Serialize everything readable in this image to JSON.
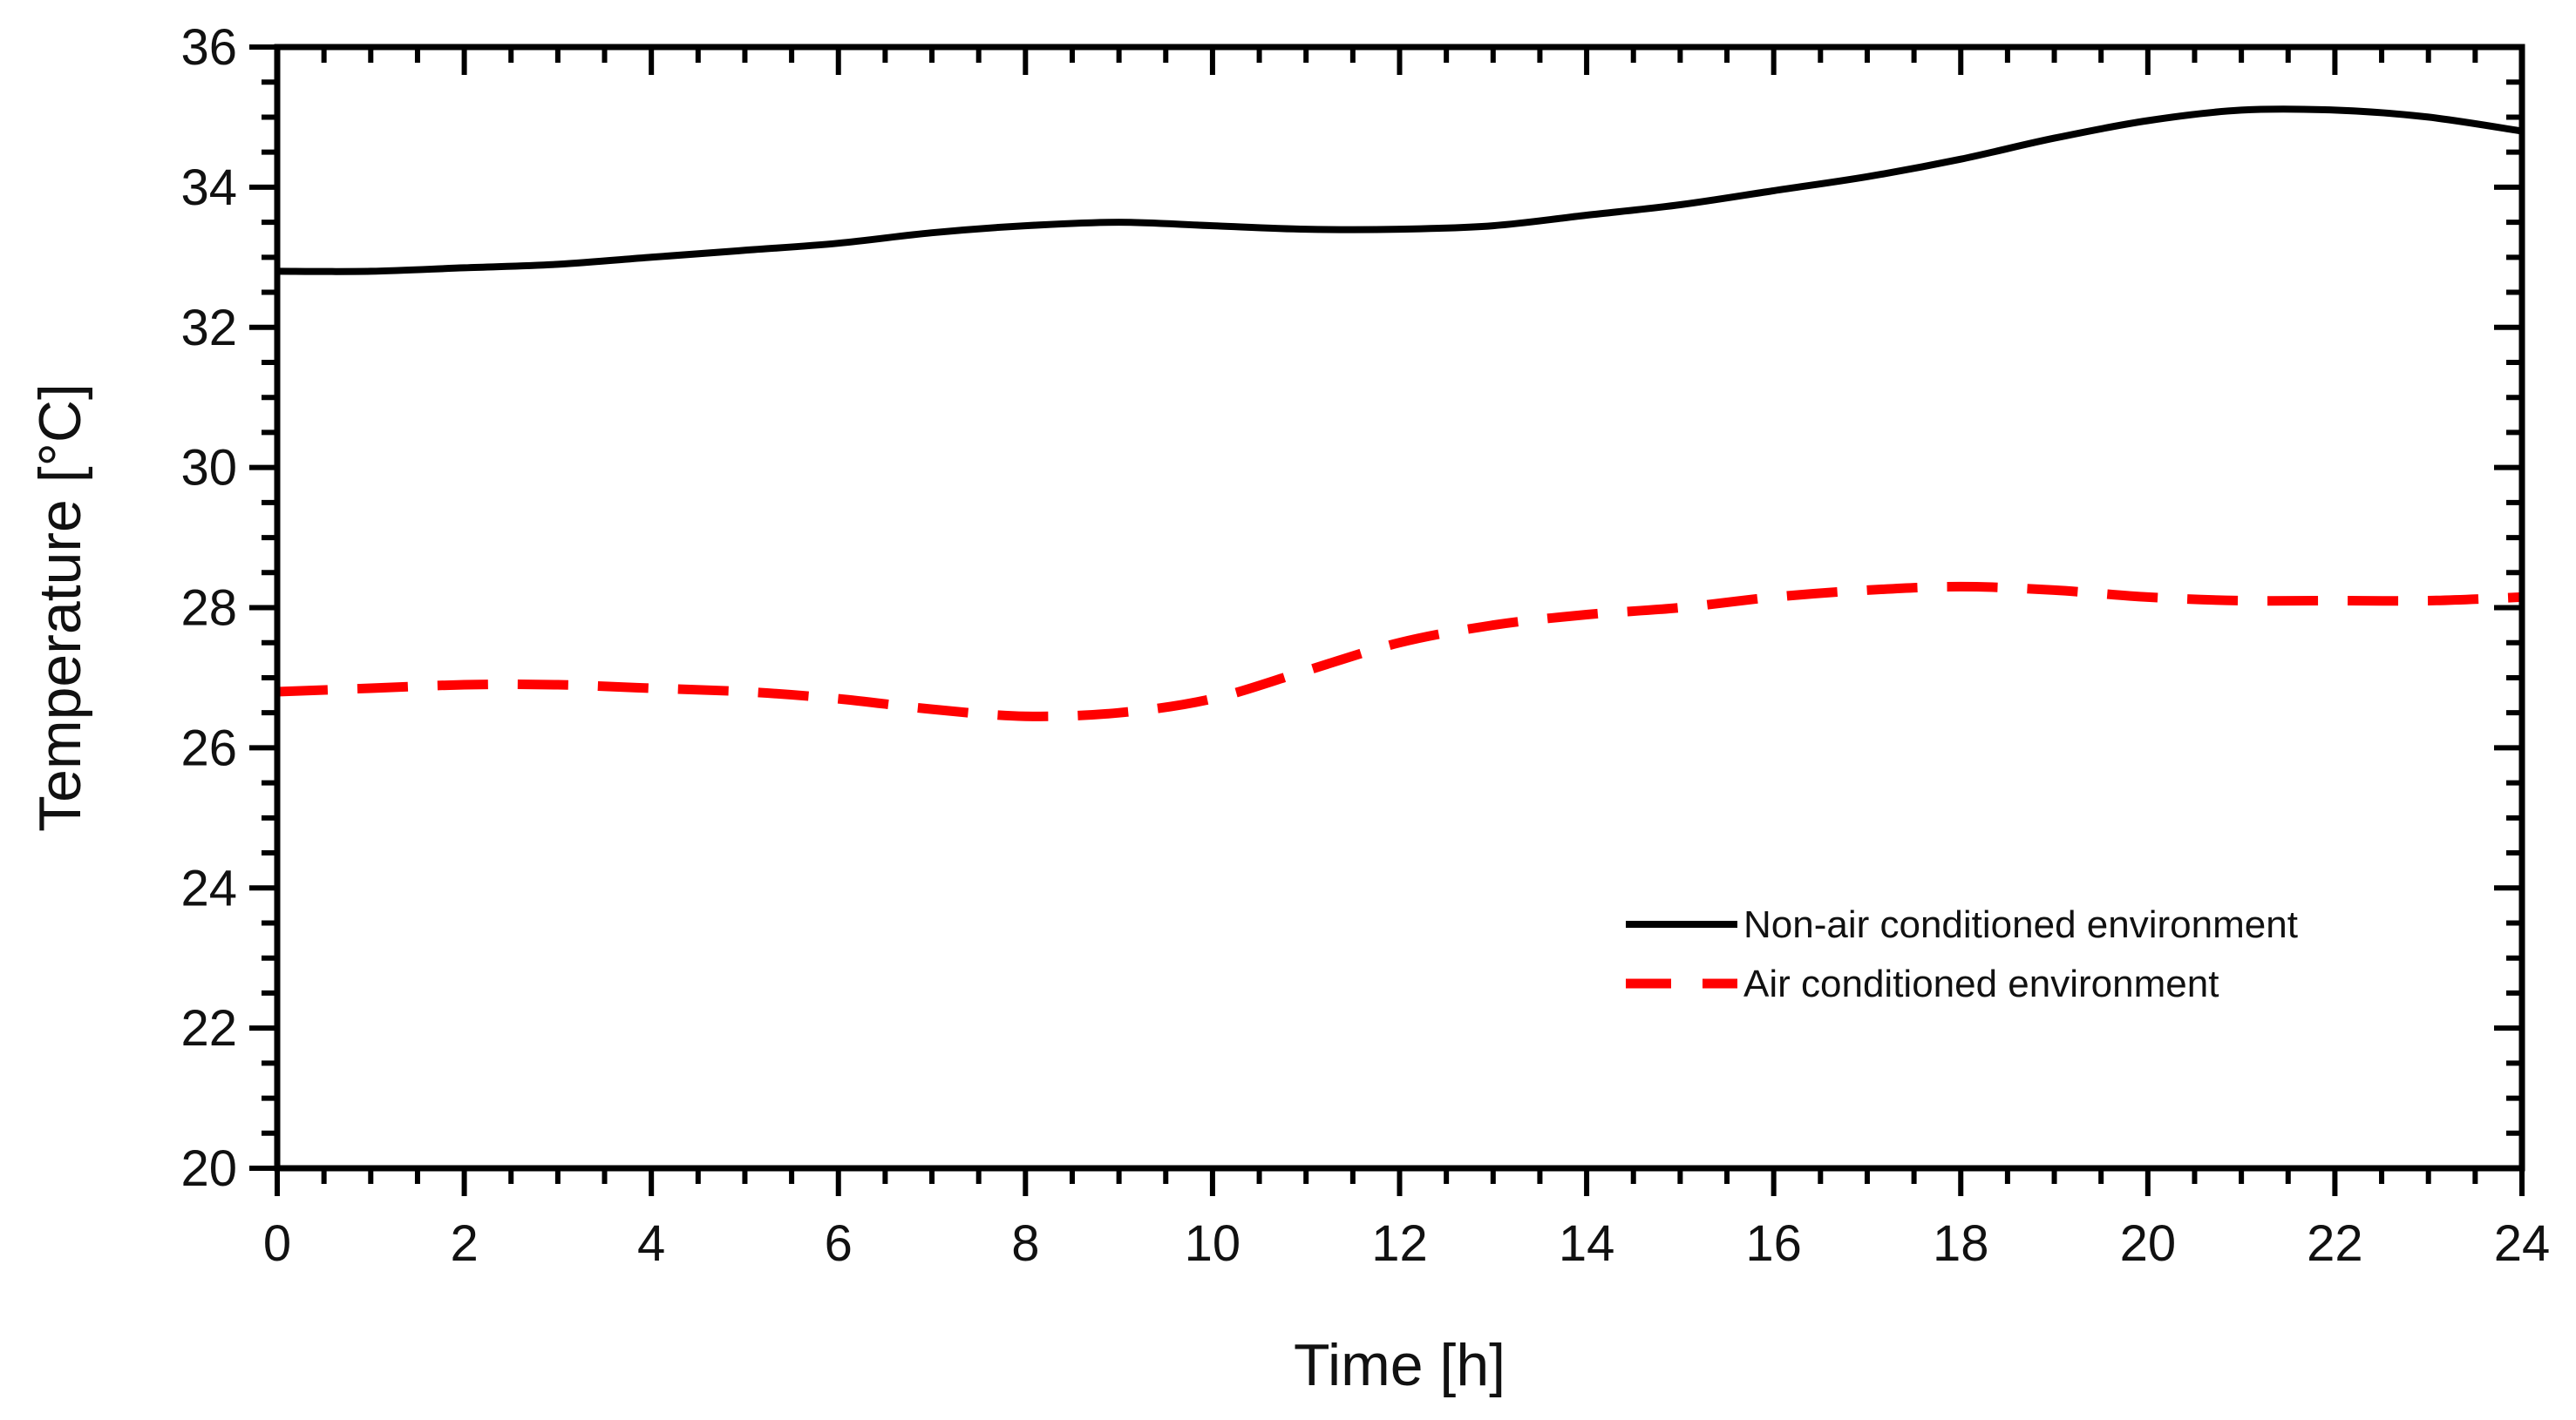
{
  "chart_data": {
    "type": "line",
    "title": "",
    "xlabel": "Time [h]",
    "ylabel": "Temperature [°C]",
    "xlim": [
      0,
      24
    ],
    "ylim": [
      20,
      36
    ],
    "xticks": [
      0,
      2,
      4,
      6,
      8,
      10,
      12,
      14,
      16,
      18,
      20,
      22,
      24
    ],
    "yticks": [
      20,
      22,
      24,
      26,
      28,
      30,
      32,
      34,
      36
    ],
    "x_minor_step": 0.5,
    "y_minor_step": 0.5,
    "grid": false,
    "legend_position": "lower-right",
    "series": [
      {
        "name": "Non-air conditioned environment",
        "color": "#000000",
        "style": "solid",
        "x": [
          0,
          1,
          2,
          3,
          4,
          5,
          6,
          7,
          8,
          9,
          10,
          11,
          12,
          13,
          14,
          15,
          16,
          17,
          18,
          19,
          20,
          21,
          22,
          23,
          24
        ],
        "y": [
          32.8,
          32.8,
          32.85,
          32.9,
          33.0,
          33.1,
          33.2,
          33.35,
          33.45,
          33.5,
          33.45,
          33.4,
          33.4,
          33.45,
          33.6,
          33.75,
          33.95,
          34.15,
          34.4,
          34.7,
          34.95,
          35.1,
          35.1,
          35.0,
          34.8
        ]
      },
      {
        "name": "Air conditioned environment",
        "color": "#ff0000",
        "style": "dashed",
        "x": [
          0,
          1,
          2,
          3,
          4,
          5,
          6,
          7,
          8,
          9,
          10,
          11,
          12,
          13,
          14,
          15,
          16,
          17,
          18,
          19,
          20,
          21,
          22,
          23,
          24
        ],
        "y": [
          26.8,
          26.85,
          26.9,
          26.9,
          26.85,
          26.8,
          26.7,
          26.55,
          26.45,
          26.5,
          26.7,
          27.1,
          27.5,
          27.75,
          27.9,
          28.0,
          28.15,
          28.25,
          28.3,
          28.25,
          28.15,
          28.1,
          28.1,
          28.1,
          28.15
        ]
      }
    ]
  }
}
